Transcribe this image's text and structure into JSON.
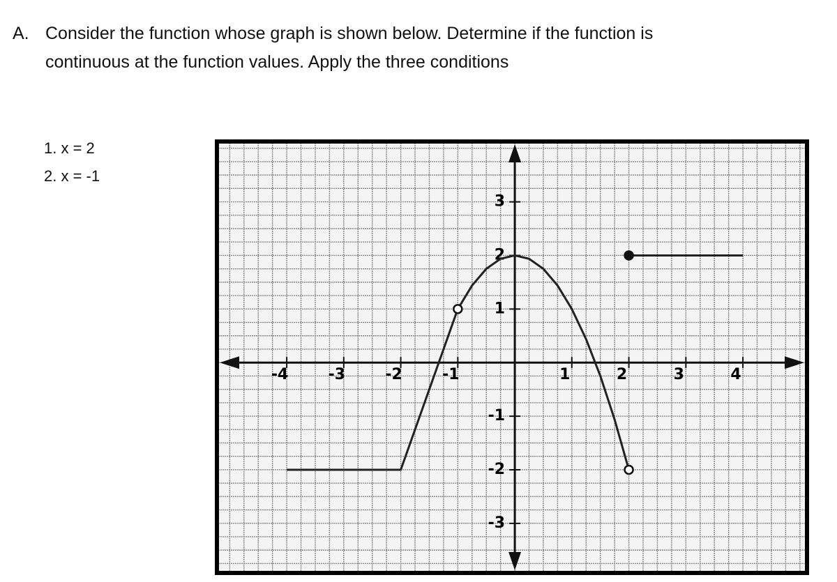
{
  "problem": {
    "label": "A.",
    "text_line1": "Consider the function whose graph is shown below. Determine if the function is",
    "text_line2": "continuous at the function values. Apply the three conditions",
    "items": [
      "1. x = 2",
      "2. x = -1"
    ]
  },
  "graph": {
    "xlim": [
      -5.2,
      5.1
    ],
    "ylim": [
      -3.9,
      4.1
    ],
    "xticks": [
      -4,
      -3,
      -2,
      -1,
      1,
      2,
      3,
      4
    ],
    "yticks": [
      3,
      2,
      1,
      -1,
      -2,
      -3
    ],
    "pieces": [
      {
        "x": [
          -4,
          -2,
          -1
        ],
        "y": [
          -2,
          -2,
          1
        ]
      },
      {
        "x": [
          -1,
          -0.75,
          -0.5,
          -0.25,
          0,
          0.25,
          0.5,
          0.75,
          1,
          1.25,
          1.5,
          1.75,
          2
        ],
        "y": [
          1,
          1.4375,
          1.75,
          1.9375,
          2,
          1.9375,
          1.75,
          1.4375,
          1,
          0.4375,
          -0.25,
          -1.0625,
          -2
        ]
      },
      {
        "x": [
          2,
          4
        ],
        "y": [
          2,
          2
        ]
      }
    ],
    "points": [
      {
        "x": -1,
        "y": 1,
        "filled": false
      },
      {
        "x": 2,
        "y": 2,
        "filled": true
      },
      {
        "x": 2,
        "y": -2,
        "filled": false
      }
    ]
  }
}
